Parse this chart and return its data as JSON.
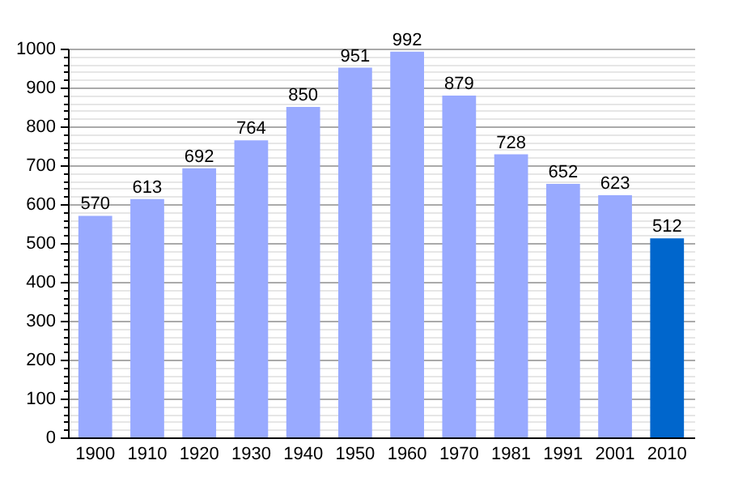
{
  "chart_data": {
    "type": "bar",
    "categories": [
      "1900",
      "1910",
      "1920",
      "1930",
      "1940",
      "1950",
      "1960",
      "1970",
      "1981",
      "1991",
      "2001",
      "2010"
    ],
    "values": [
      570,
      613,
      692,
      764,
      850,
      951,
      992,
      879,
      728,
      652,
      623,
      512
    ],
    "colors": [
      "#99aaff",
      "#99aaff",
      "#99aaff",
      "#99aaff",
      "#99aaff",
      "#99aaff",
      "#99aaff",
      "#99aaff",
      "#99aaff",
      "#99aaff",
      "#99aaff",
      "#0066cc"
    ],
    "ylim": [
      0,
      1000
    ],
    "yticks": [
      0,
      {
        "value": 20,
        "label": null
      },
      {
        "value": 40,
        "label": null
      },
      {
        "value": 60,
        "label": null
      },
      {
        "value": 80,
        "label": null
      },
      100,
      {
        "value": 120,
        "label": null
      },
      {
        "value": 140,
        "label": null
      },
      {
        "value": 160,
        "label": null
      },
      {
        "value": 180,
        "label": null
      },
      200,
      {
        "value": 220,
        "label": null
      },
      {
        "value": 240,
        "label": null
      },
      {
        "value": 260,
        "label": null
      },
      {
        "value": 280,
        "label": null
      },
      300,
      {
        "value": 320,
        "label": null
      },
      {
        "value": 340,
        "label": null
      },
      {
        "value": 360,
        "label": null
      },
      {
        "value": 380,
        "label": null
      },
      400,
      {
        "value": 420,
        "label": null
      },
      {
        "value": 440,
        "label": null
      },
      {
        "value": 460,
        "label": null
      },
      {
        "value": 480,
        "label": null
      },
      500,
      {
        "value": 520,
        "label": null
      },
      {
        "value": 540,
        "label": null
      },
      {
        "value": 560,
        "label": null
      },
      {
        "value": 580,
        "label": null
      },
      600,
      {
        "value": 620,
        "label": null
      },
      {
        "value": 640,
        "label": null
      },
      {
        "value": 660,
        "label": null
      },
      {
        "value": 680,
        "label": null
      },
      700,
      {
        "value": 720,
        "label": null
      },
      {
        "value": 740,
        "label": null
      },
      {
        "value": 760,
        "label": null
      },
      {
        "value": 780,
        "label": null
      },
      800,
      {
        "value": 820,
        "label": null
      },
      {
        "value": 840,
        "label": null
      },
      {
        "value": 860,
        "label": null
      },
      {
        "value": 880,
        "label": null
      },
      900,
      {
        "value": 920,
        "label": null
      },
      {
        "value": 940,
        "label": null
      },
      {
        "value": 960,
        "label": null
      },
      {
        "value": 980,
        "label": null
      },
      1000
    ],
    "grid": "y",
    "data_labels": true
  }
}
